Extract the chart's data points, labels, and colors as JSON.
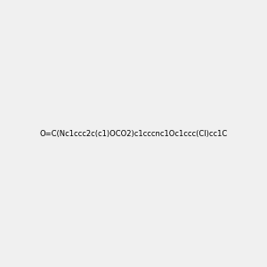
{
  "smiles": "O=C(Nc1ccc2c(c1)OCO2)c1cccnc1Oc1ccc(Cl)cc1C",
  "image_size": 300,
  "background_color": "#f0f0f0",
  "bond_color": "#000000",
  "atom_colors": {
    "N": "#0000ff",
    "O": "#ff0000",
    "Cl": "#00aa00"
  },
  "title": ""
}
